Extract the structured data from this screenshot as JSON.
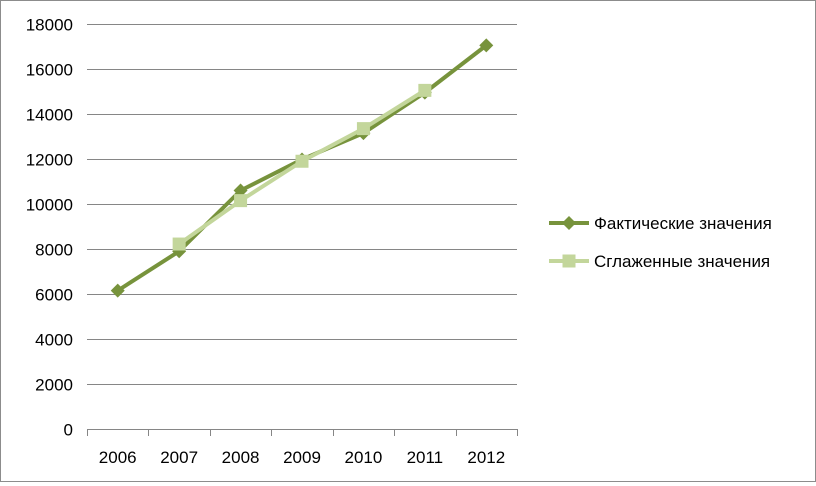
{
  "chart_data": {
    "type": "line",
    "categories": [
      "2006",
      "2007",
      "2008",
      "2009",
      "2010",
      "2011",
      "2012"
    ],
    "ylim": [
      0,
      18000
    ],
    "yticks": [
      0,
      2000,
      4000,
      6000,
      8000,
      10000,
      12000,
      14000,
      16000,
      18000
    ],
    "grid": true,
    "legend_position": "right",
    "series": [
      {
        "name": "Фактические значения",
        "values": [
          6150,
          7900,
          10600,
          11980,
          13150,
          14950,
          17050
        ],
        "color": "#77933c",
        "marker": "diamond"
      },
      {
        "name": "Сглаженные значения",
        "values": [
          null,
          8220,
          10150,
          11900,
          13350,
          15050,
          null
        ],
        "color": "#c3d69b",
        "marker": "square"
      }
    ]
  }
}
